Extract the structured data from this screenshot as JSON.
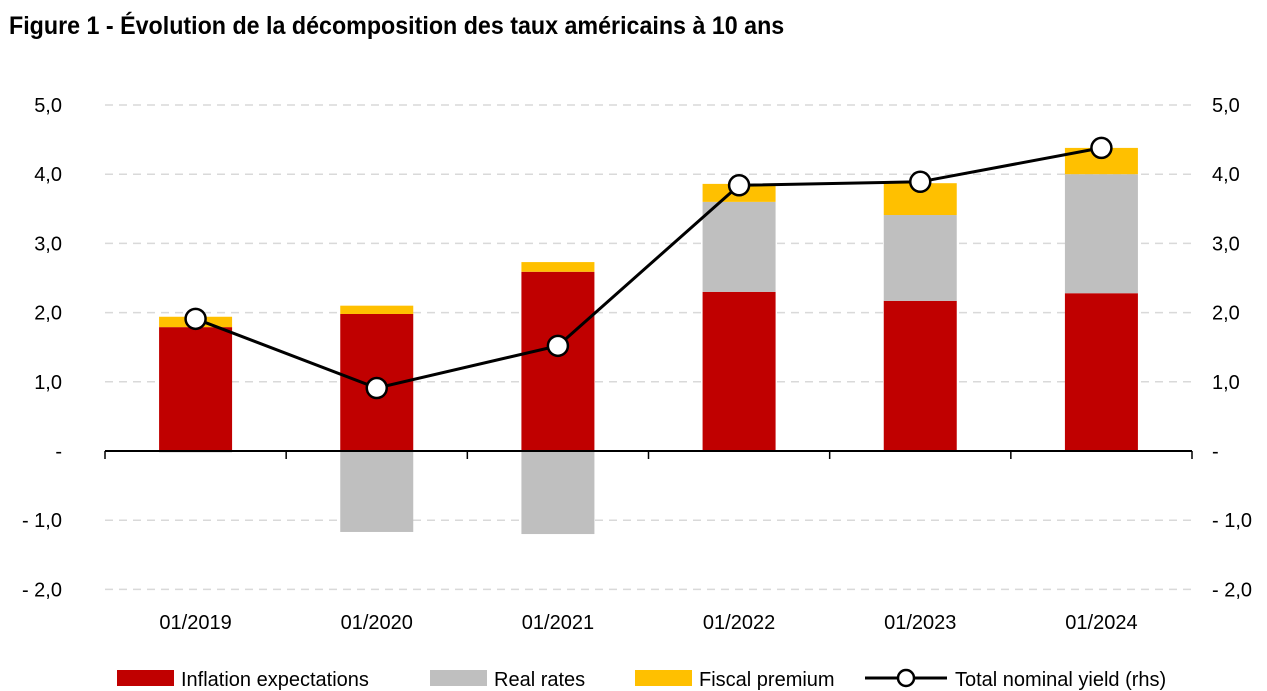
{
  "chart_data": {
    "type": "bar",
    "title": "Figure 1 - Évolution de la décomposition des taux américains à 10 ans",
    "categories": [
      "01/2019",
      "01/2020",
      "01/2021",
      "01/2022",
      "01/2023",
      "01/2024"
    ],
    "stacked": true,
    "series": [
      {
        "name": "Inflation expectations",
        "type": "bar",
        "color": "#C00000",
        "values": [
          1.79,
          1.98,
          2.59,
          2.3,
          2.17,
          2.28
        ]
      },
      {
        "name": "Real rates",
        "type": "bar",
        "color": "#BFBFBF",
        "values": [
          -0.02,
          -1.17,
          -1.2,
          1.3,
          1.24,
          1.72
        ]
      },
      {
        "name": "Fiscal premium",
        "type": "bar",
        "color": "#FFC000",
        "values": [
          0.15,
          0.12,
          0.14,
          0.26,
          0.46,
          0.38
        ]
      },
      {
        "name": "Total nominal yield (rhs)",
        "type": "line",
        "color": "#000000",
        "values": [
          1.91,
          0.91,
          1.52,
          3.84,
          3.89,
          4.38
        ]
      }
    ],
    "ylim": [
      -2,
      5
    ],
    "y2lim": [
      -2,
      5
    ],
    "yticks": [
      "- 2,0",
      "- 1,0",
      "-",
      "1,0",
      "2,0",
      "3,0",
      "4,0",
      "5,0"
    ],
    "ytick_values": [
      -2,
      -1,
      0,
      1,
      2,
      3,
      4,
      5
    ],
    "grid": true,
    "legend_position": "bottom"
  }
}
